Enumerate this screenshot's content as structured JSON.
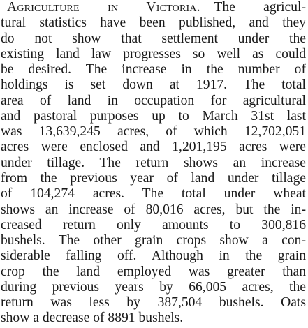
{
  "article": {
    "heading": "Agriculture in Victoria.",
    "first_line_rest": "—The agricul-",
    "lines": [
      "tural statistics have been published, and they",
      "do not show that settlement under the",
      "existing land law progresses so well as could",
      "be desired. The increase in the number of",
      "holdings is set down at 1917. The total",
      "area of land in occupation for agricultural",
      "and pastoral purposes up to March 31st last",
      "was 13,639,245 acres, of which 12,702,051",
      "acres were enclosed and 1,201,195 acres were",
      "under tillage. The return shows an increase",
      "from the previous year of land under tillage",
      "of 104,274 acres. The total under wheat",
      "shows an increase of 80,016 acres, but the in-",
      "creased return only amounts to 300,816",
      "bushels. The other grain crops show a con-",
      "siderable falling off. Although in the grain",
      "crop the land employed was greater than",
      "during previous years by 66,005 acres, the",
      "return was less by 387,504 bushels. Oats"
    ],
    "last_line": "show a decrease of 8891 bushels."
  }
}
